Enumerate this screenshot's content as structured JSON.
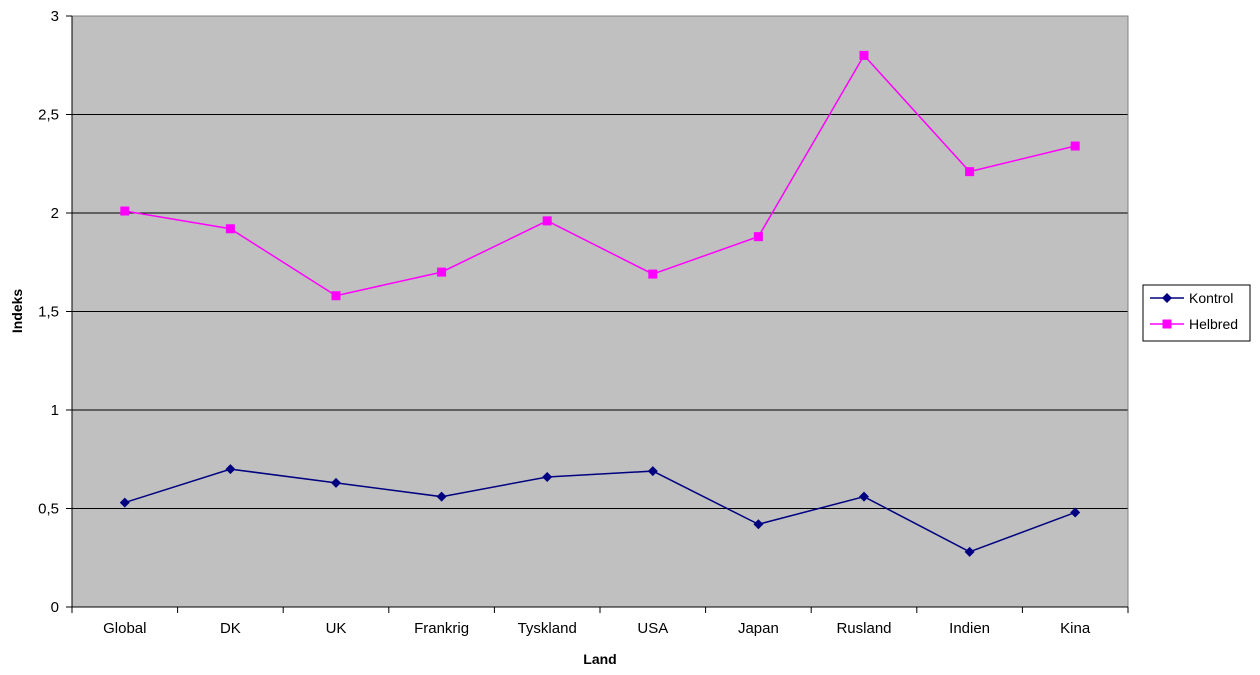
{
  "chart_data": {
    "type": "line",
    "title": "",
    "xlabel": "Land",
    "ylabel": "Indeks",
    "categories": [
      "Global",
      "DK",
      "UK",
      "Frankrig",
      "Tyskland",
      "USA",
      "Japan",
      "Rusland",
      "Indien",
      "Kina"
    ],
    "ylim": [
      0,
      3
    ],
    "yticks": [
      "0",
      "0,5",
      "1",
      "1,5",
      "2",
      "2,5",
      "3"
    ],
    "grid": true,
    "legend_position": "right",
    "plot_background": "#c0c0c0",
    "series": [
      {
        "name": "Kontrol",
        "color": "#000080",
        "marker": "diamond",
        "values": [
          0.53,
          0.7,
          0.63,
          0.56,
          0.66,
          0.69,
          0.42,
          0.56,
          0.28,
          0.48
        ]
      },
      {
        "name": "Helbred",
        "color": "#ff00ff",
        "marker": "square",
        "values": [
          2.01,
          1.92,
          1.58,
          1.7,
          1.96,
          1.69,
          1.88,
          2.8,
          2.21,
          2.34
        ]
      }
    ]
  }
}
